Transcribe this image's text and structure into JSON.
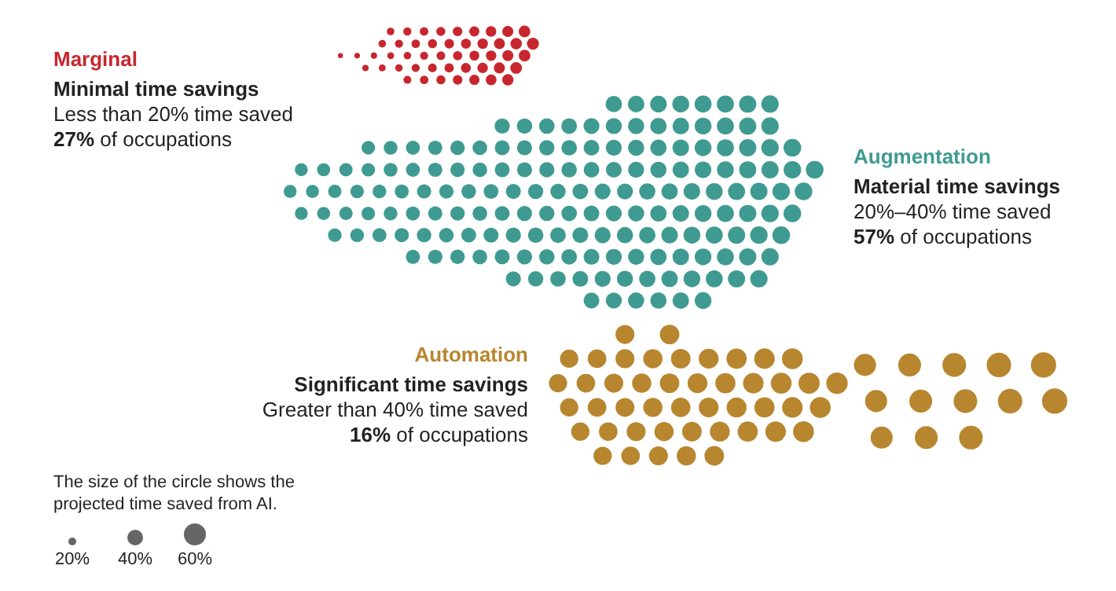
{
  "chart_data": {
    "type": "other",
    "categories": [
      "Marginal",
      "Augmentation",
      "Automation"
    ],
    "values": [
      27,
      57,
      16
    ],
    "value_labels": [
      "27%",
      "57%",
      "16%"
    ],
    "colors": [
      "#c8262e",
      "#3f9b91",
      "#b8862e"
    ],
    "annotations": [
      "Minimal time savings",
      "Less than 20% time saved",
      "of occupations",
      "Material time savings",
      "20%–40% time saved",
      "of occupations",
      "Significant time savings",
      "Greater than 40% time saved",
      "of occupations",
      "The size of the circle shows the projected time saved from AI.",
      "20%",
      "40%",
      "60%"
    ]
  }
}
